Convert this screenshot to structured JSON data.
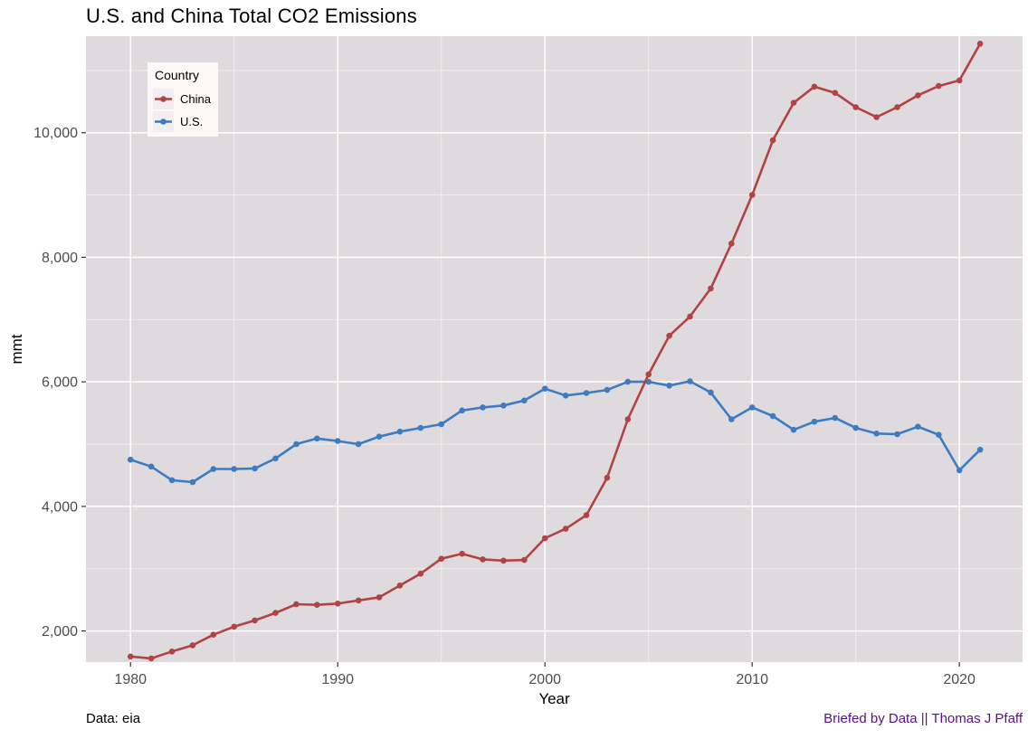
{
  "title": "U.S. and China Total CO2 Emissions",
  "footer": {
    "left": "Data: eia",
    "right": "Briefed by Data || Thomas J Pfaff"
  },
  "legend": {
    "title": "Country",
    "items": [
      {
        "label": "China"
      },
      {
        "label": "U.S."
      }
    ]
  },
  "style": {
    "panel_bg": "#DEDADD",
    "grid_color": "#FFFFFF",
    "axis_text_color": "#4D4D4D",
    "tick_mark_color": "#333333",
    "title_color": "#000000",
    "caption_color": "#5A0F8C",
    "legend_bg": "#FDF8F8",
    "legend_key_bg": "#F1EDF0"
  },
  "chart_data": {
    "type": "line",
    "title": "U.S. and China Total CO2 Emissions",
    "xlabel": "Year",
    "ylabel": "mmt",
    "legend_title": "Country",
    "legend_position": "inside-top-left",
    "grid": true,
    "xlim": [
      1977.85,
      2023.05
    ],
    "ylim": [
      1500,
      11550
    ],
    "x_ticks": [
      {
        "v": 1980,
        "label": "1980"
      },
      {
        "v": 1990,
        "label": "1990"
      },
      {
        "v": 2000,
        "label": "2000"
      },
      {
        "v": 2010,
        "label": "2010"
      },
      {
        "v": 2020,
        "label": "2020"
      }
    ],
    "x_minor_ticks": [
      1985,
      1995,
      2005,
      2015
    ],
    "y_ticks": [
      {
        "v": 2000,
        "label": "2,000"
      },
      {
        "v": 4000,
        "label": "4,000"
      },
      {
        "v": 6000,
        "label": "6,000"
      },
      {
        "v": 8000,
        "label": "8,000"
      },
      {
        "v": 10000,
        "label": "10,000"
      }
    ],
    "y_minor_ticks": [
      3000,
      5000,
      7000,
      9000,
      11000
    ],
    "x": [
      1980,
      1981,
      1982,
      1983,
      1984,
      1985,
      1986,
      1987,
      1988,
      1989,
      1990,
      1991,
      1992,
      1993,
      1994,
      1995,
      1996,
      1997,
      1998,
      1999,
      2000,
      2001,
      2002,
      2003,
      2004,
      2005,
      2006,
      2007,
      2008,
      2009,
      2010,
      2011,
      2012,
      2013,
      2014,
      2015,
      2016,
      2017,
      2018,
      2019,
      2020,
      2021
    ],
    "series": [
      {
        "name": "U.S.",
        "color": "#3E7CC1",
        "values": [
          4750,
          4640,
          4420,
          4390,
          4600,
          4600,
          4610,
          4770,
          5000,
          5090,
          5050,
          5000,
          5120,
          5200,
          5260,
          5320,
          5540,
          5590,
          5620,
          5700,
          5890,
          5780,
          5820,
          5870,
          6000,
          6000,
          5940,
          6010,
          5830,
          5400,
          5590,
          5450,
          5230,
          5360,
          5420,
          5260,
          5170,
          5160,
          5280,
          5150,
          4580,
          4910
        ]
      },
      {
        "name": "China",
        "color": "#B24343",
        "values": [
          1590,
          1560,
          1670,
          1770,
          1940,
          2070,
          2170,
          2290,
          2430,
          2420,
          2440,
          2490,
          2540,
          2730,
          2920,
          3160,
          3240,
          3150,
          3130,
          3140,
          3490,
          3640,
          3860,
          4460,
          5400,
          6120,
          6740,
          7050,
          7500,
          8220,
          9000,
          9880,
          10480,
          10740,
          10640,
          10410,
          10250,
          10410,
          10600,
          10750,
          10840,
          11430
        ]
      }
    ]
  }
}
